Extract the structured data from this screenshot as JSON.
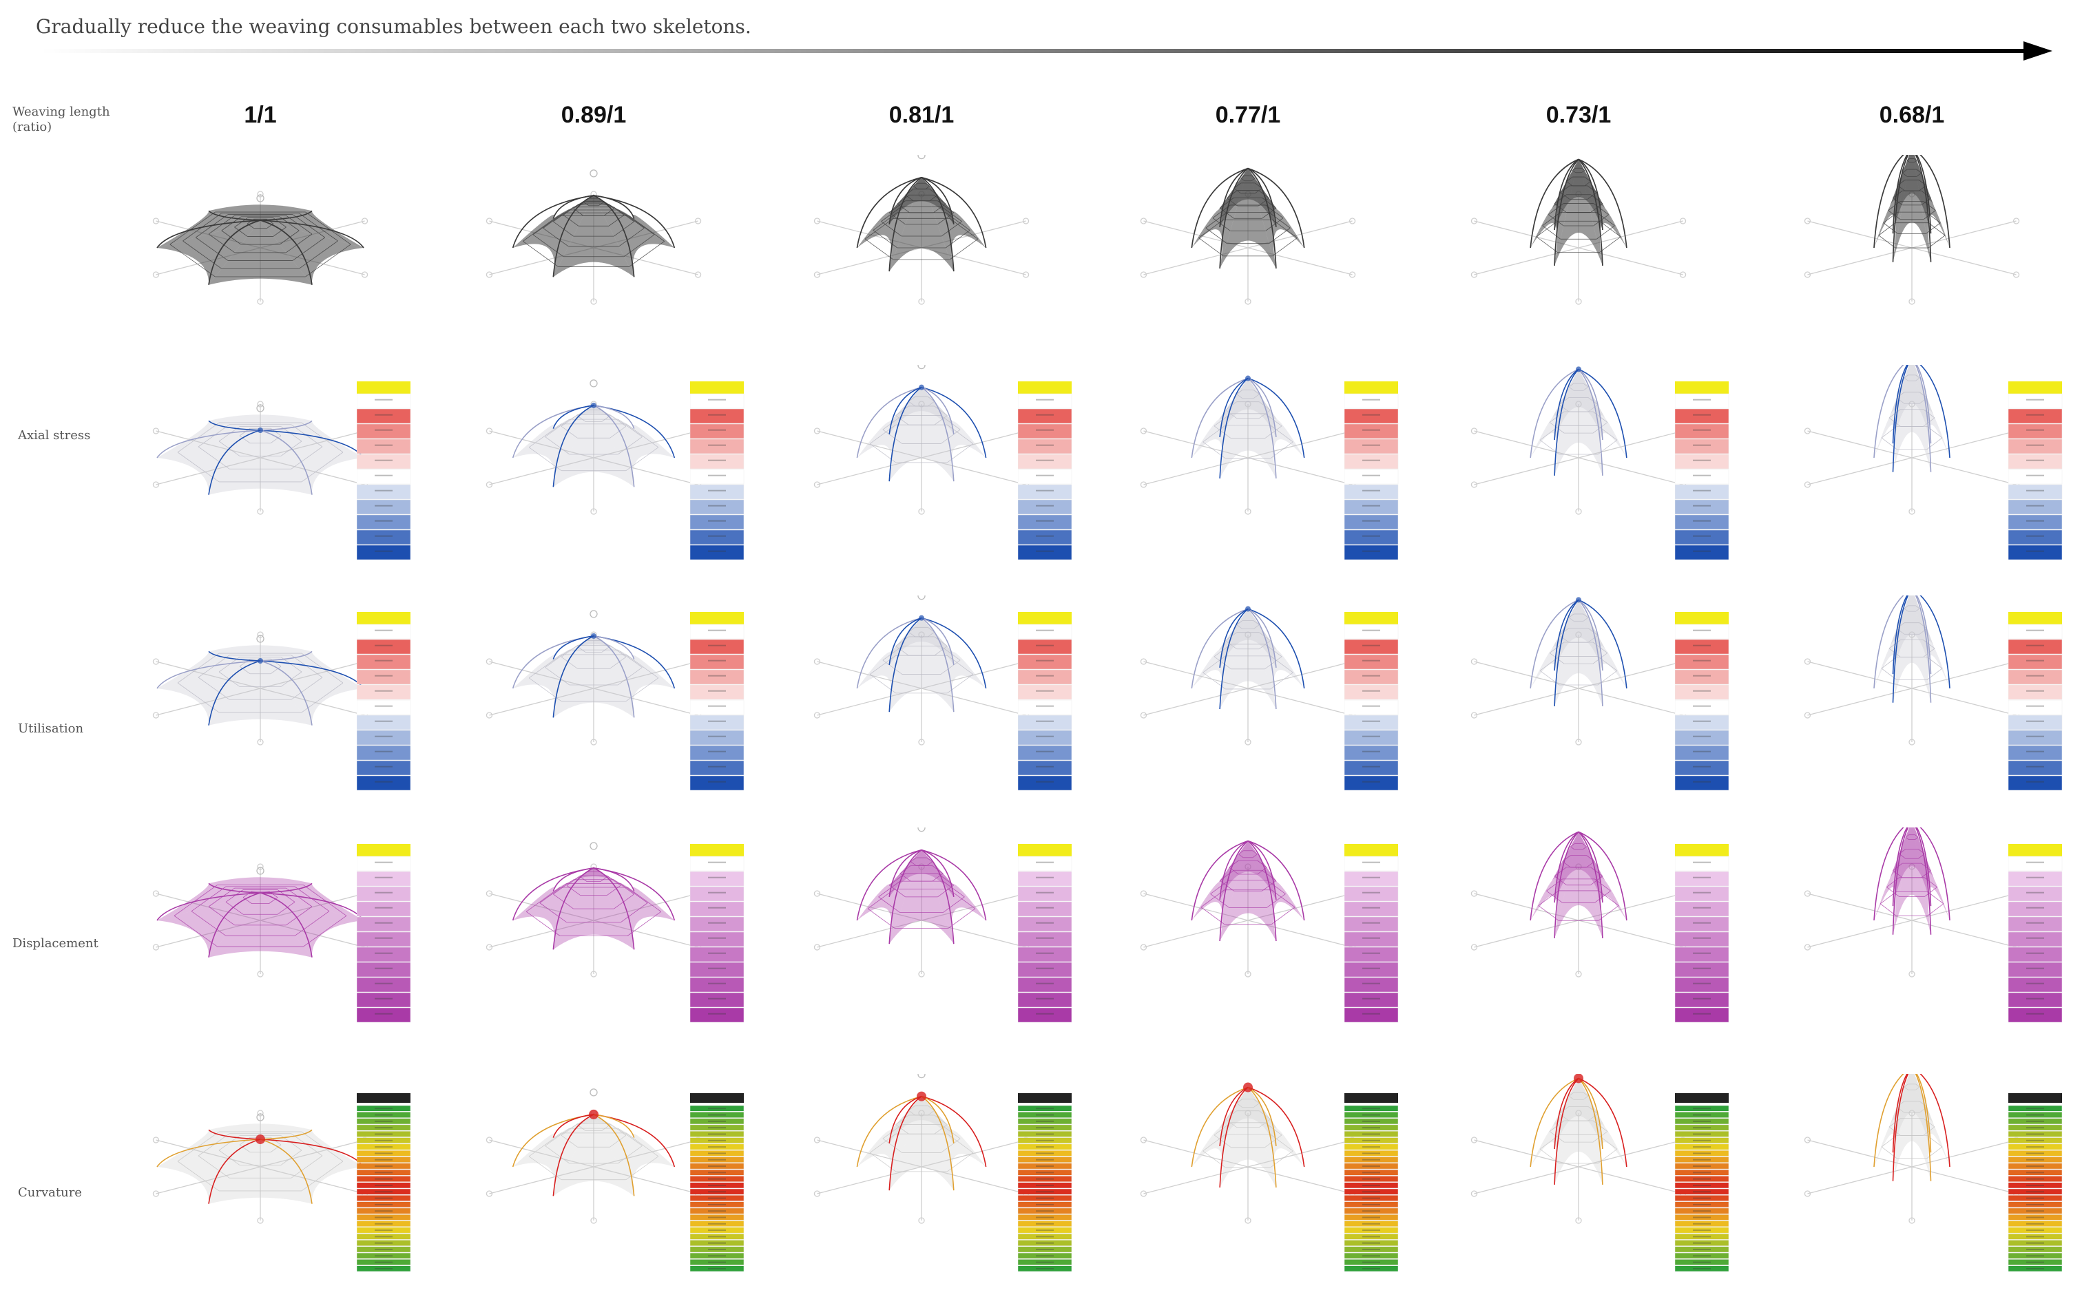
{
  "header": {
    "text": "Gradually reduce the weaving consumables between each two skeletons."
  },
  "row_labels": {
    "weaving_length": "Weaving length",
    "ratio": "(ratio)",
    "axial": "Axial stress",
    "utilisation": "Utilisation",
    "displacement": "Displacement",
    "curvature": "Curvature"
  },
  "columns": [
    {
      "ratio_label": "1/1",
      "ratio": 1.0
    },
    {
      "ratio_label": "0.89/1",
      "ratio": 0.89
    },
    {
      "ratio_label": "0.81/1",
      "ratio": 0.81
    },
    {
      "ratio_label": "0.77/1",
      "ratio": 0.77
    },
    {
      "ratio_label": "0.73/1",
      "ratio": 0.73
    },
    {
      "ratio_label": "0.68/1",
      "ratio": 0.68
    }
  ],
  "colors": {
    "mesh": "#3a3a3a",
    "stress_high": "#e23b36",
    "stress_low": "#1d4fb0",
    "legend_header": "#f2ec1a",
    "displacement": "#a93aa7",
    "curvature_high": "#d81f1f",
    "curvature_low": "#2fa13a"
  }
}
